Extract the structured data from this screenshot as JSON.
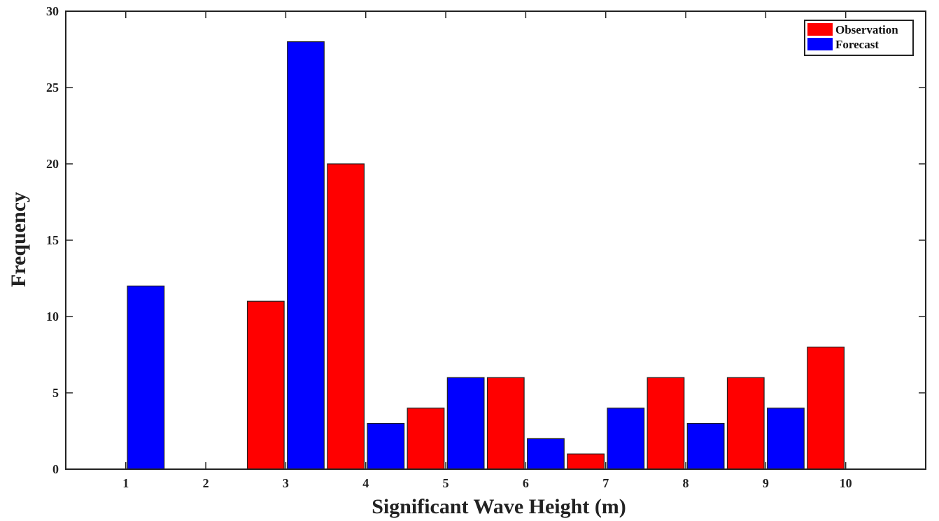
{
  "chart_data": {
    "type": "bar",
    "title": "",
    "xlabel": "Significant Wave Height (m)",
    "ylabel": "Frequency",
    "xlim": [
      0.25,
      11
    ],
    "ylim": [
      0,
      30
    ],
    "xticks": [
      1,
      2,
      3,
      4,
      5,
      6,
      7,
      8,
      9,
      10
    ],
    "yticks": [
      0,
      5,
      10,
      15,
      20,
      25,
      30
    ],
    "grid": false,
    "legend_position": "top-right",
    "series": [
      {
        "name": "Observation",
        "color": "#ff0000",
        "points": [
          {
            "x": 2.75,
            "y": 11
          },
          {
            "x": 3.75,
            "y": 20
          },
          {
            "x": 4.75,
            "y": 4
          },
          {
            "x": 5.75,
            "y": 6
          },
          {
            "x": 6.75,
            "y": 1
          },
          {
            "x": 7.75,
            "y": 6
          },
          {
            "x": 8.75,
            "y": 6
          },
          {
            "x": 9.75,
            "y": 8
          }
        ]
      },
      {
        "name": "Forecast",
        "color": "#0000ff",
        "points": [
          {
            "x": 1.25,
            "y": 12
          },
          {
            "x": 3.25,
            "y": 28
          },
          {
            "x": 4.25,
            "y": 3
          },
          {
            "x": 5.25,
            "y": 6
          },
          {
            "x": 6.25,
            "y": 2
          },
          {
            "x": 7.25,
            "y": 4
          },
          {
            "x": 8.25,
            "y": 3
          },
          {
            "x": 9.25,
            "y": 4
          }
        ]
      }
    ]
  }
}
